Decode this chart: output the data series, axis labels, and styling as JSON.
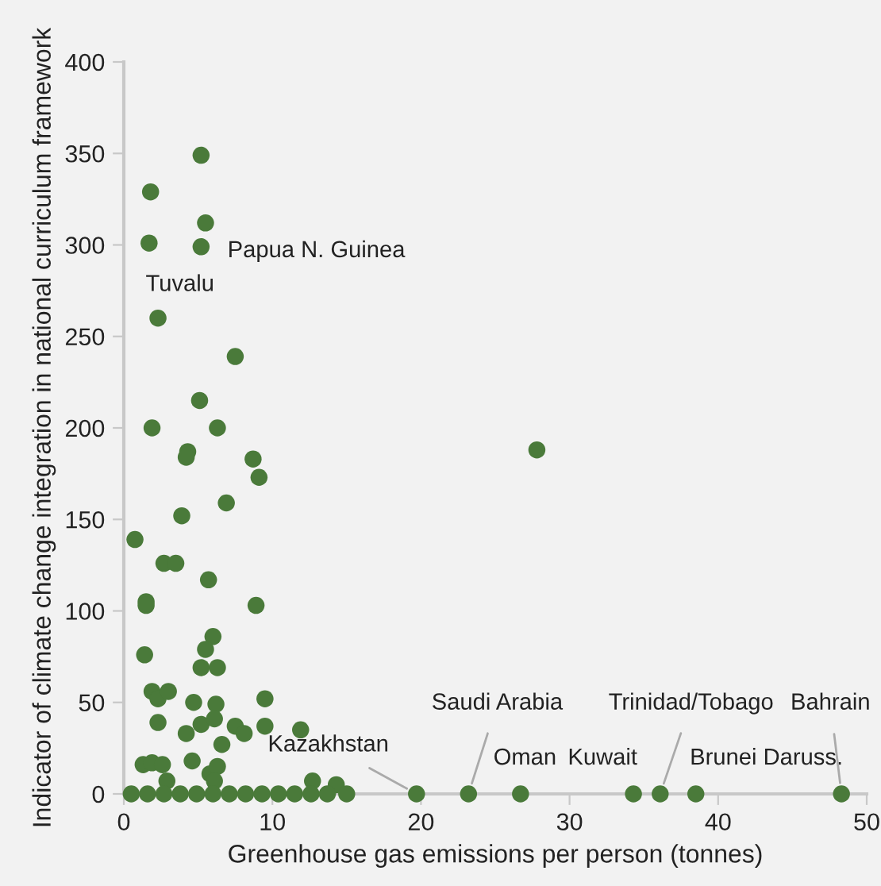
{
  "chart_data": {
    "type": "scatter",
    "xlabel": "Greenhouse gas emissions per person (tonnes)",
    "ylabel": "Indicator of climate change integration in national curriculum framework",
    "series": [
      {
        "color": "#4a7a3a",
        "x": [
          5.2,
          1.8,
          5.5,
          1.7,
          5.2,
          2.3,
          7.5,
          5.1,
          1.9,
          6.3,
          4.3,
          4.2,
          8.7,
          9.1,
          3.9,
          6.9,
          0.75,
          2.7,
          3.5,
          5.7,
          1.5,
          1.5,
          8.9,
          6.0,
          5.5,
          1.4,
          5.2,
          6.3,
          1.9,
          2.3,
          3.0,
          4.7,
          6.2,
          9.5,
          2.3,
          4.2,
          5.2,
          6.1,
          7.5,
          8.1,
          9.5,
          6.6,
          11.9,
          1.3,
          1.9,
          2.6,
          4.6,
          5.8,
          6.3,
          2.9,
          12.7,
          14.3,
          6.1,
          27.8,
          0.5,
          1.6,
          2.7,
          3.8,
          4.9,
          6.0,
          7.1,
          8.2,
          9.3,
          10.4,
          11.5,
          12.6,
          13.7,
          15.0,
          19.7,
          23.2,
          26.7,
          34.3,
          36.1,
          38.5,
          48.3
        ],
        "values": [
          349,
          329,
          312,
          301,
          299,
          260,
          239,
          215,
          200,
          200,
          187,
          184,
          183,
          173,
          152,
          159,
          139,
          126,
          126,
          117,
          105,
          103,
          103,
          86,
          79,
          76,
          69,
          69,
          56,
          52,
          56,
          50,
          49,
          52,
          39,
          33,
          38,
          41,
          37,
          33,
          37,
          27,
          35,
          16,
          17,
          16,
          18,
          11,
          15,
          7,
          7,
          5,
          7,
          188,
          0,
          0,
          0,
          0,
          0,
          0,
          0,
          0,
          0,
          0,
          0,
          0,
          0,
          0,
          0,
          0,
          0,
          0,
          0,
          0,
          0
        ]
      }
    ],
    "annotations": [
      {
        "text": "Tuvalu",
        "x": 1.7,
        "y": 301
      },
      {
        "text": "Papua N. Guinea",
        "x": 5.2,
        "y": 299
      },
      {
        "text": "Kazakhstan",
        "x": 19.7,
        "y": 0
      },
      {
        "text": "Saudi Arabia",
        "x": 23.2,
        "y": 0
      },
      {
        "text": "Oman",
        "x": 26.7,
        "y": 0
      },
      {
        "text": "Kuwait",
        "x": 34.3,
        "y": 0
      },
      {
        "text": "Trinidad/Tobago",
        "x": 36.1,
        "y": 0
      },
      {
        "text": "Brunei Daruss.",
        "x": 38.5,
        "y": 0
      },
      {
        "text": "Bahrain",
        "x": 48.3,
        "y": 0
      }
    ],
    "xlim": [
      0,
      50
    ],
    "xticks": [
      0,
      10,
      20,
      30,
      40,
      50
    ],
    "ylim": [
      0,
      400
    ],
    "yticks": [
      0,
      50,
      100,
      150,
      200,
      250,
      300,
      350,
      400
    ],
    "marker": "circle",
    "grid": false,
    "legend": false
  }
}
